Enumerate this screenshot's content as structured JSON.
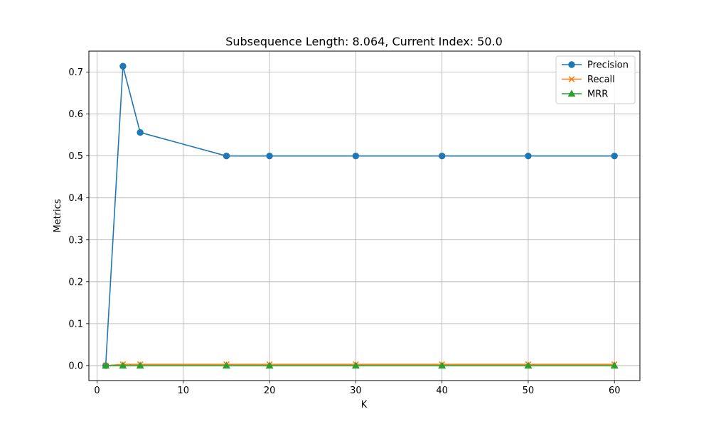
{
  "chart_data": {
    "type": "line",
    "title": "Subsequence Length: 8.064, Current Index: 50.0",
    "xlabel": "K",
    "ylabel": "Metrics",
    "xlim": [
      -0.95,
      62.95
    ],
    "ylim": [
      -0.0357,
      0.75
    ],
    "xticks": [
      0,
      10,
      20,
      30,
      40,
      50,
      60
    ],
    "yticks": [
      0.0,
      0.1,
      0.2,
      0.3,
      0.4,
      0.5,
      0.6,
      0.7
    ],
    "ytick_labels": [
      "0.0",
      "0.1",
      "0.2",
      "0.3",
      "0.4",
      "0.5",
      "0.6",
      "0.7"
    ],
    "grid": true,
    "legend_position": "top-right",
    "x": [
      1,
      3,
      5,
      15,
      20,
      30,
      40,
      50,
      60
    ],
    "series": [
      {
        "name": "Precision",
        "color": "#1f77b4",
        "marker": "circle",
        "values": [
          0.0,
          0.714,
          0.556,
          0.5,
          0.5,
          0.5,
          0.5,
          0.5,
          0.5
        ]
      },
      {
        "name": "Recall",
        "color": "#ff7f0e",
        "marker": "x",
        "values": [
          0.0,
          0.003,
          0.003,
          0.003,
          0.003,
          0.003,
          0.003,
          0.003,
          0.003
        ]
      },
      {
        "name": "MRR",
        "color": "#2ca02c",
        "marker": "triangle",
        "values": [
          0.0,
          0.0,
          0.0,
          0.0,
          0.0,
          0.0,
          0.0,
          0.0,
          0.0
        ]
      }
    ]
  }
}
